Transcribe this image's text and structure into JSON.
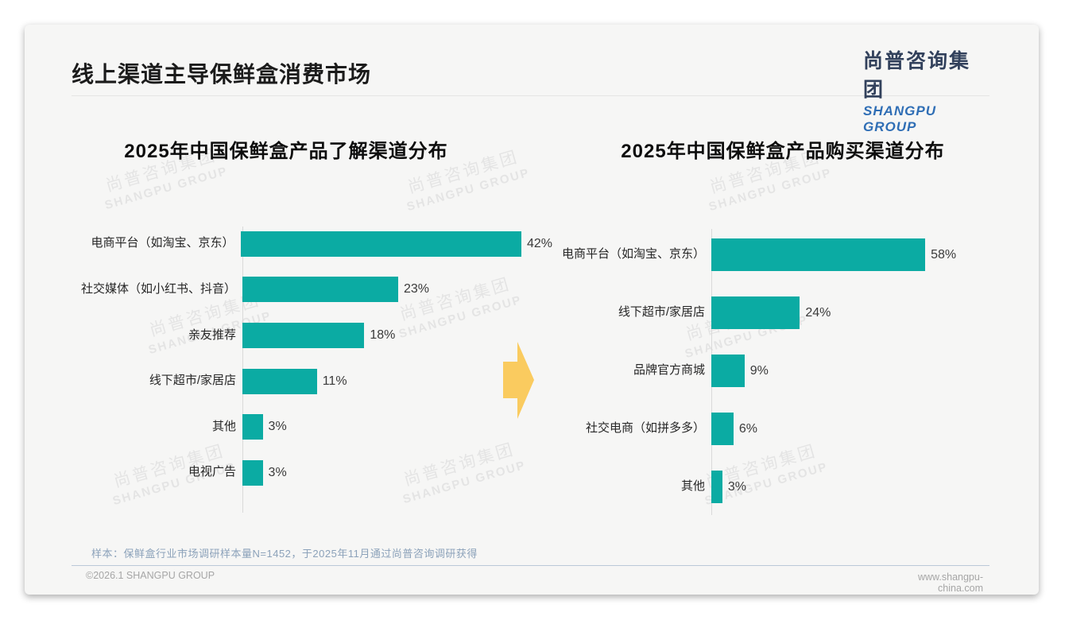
{
  "page": {
    "title": "线上渠道主导保鲜盒消费市场",
    "logo": {
      "zh": "尚普咨询集团",
      "en": "SHANGPU GROUP"
    },
    "watermark": {
      "zh": "尚普咨询集团",
      "en": "SHANGPU GROUP"
    },
    "note": "样本：保鲜盒行业市场调研样本量N=1452，于2025年11月通过尚普咨询调研获得",
    "footer_left": "©2026.1 SHANGPU GROUP",
    "footer_right": "www.shangpu-china.com"
  },
  "colors": {
    "bar": "#0BABA3",
    "arrow": "#FACB5F",
    "logo_zh": "#32415c",
    "logo_en": "#2f6eb5"
  },
  "chart_data": [
    {
      "type": "bar",
      "orientation": "horizontal",
      "title": "2025年中国保鲜盒产品了解渠道分布",
      "categories": [
        "电商平台（如淘宝、京东）",
        "社交媒体（如小红书、抖音）",
        "亲友推荐",
        "线下超市/家居店",
        "其他",
        "电视广告"
      ],
      "values": [
        42,
        23,
        18,
        11,
        3,
        3
      ],
      "labels": [
        "42%",
        "23%",
        "18%",
        "11%",
        "3%",
        "3%"
      ],
      "unit": "%",
      "xlim": [
        0,
        60
      ],
      "grid": false,
      "legend": false
    },
    {
      "type": "bar",
      "orientation": "horizontal",
      "title": "2025年中国保鲜盒产品购买渠道分布",
      "categories": [
        "电商平台（如淘宝、京东）",
        "线下超市/家居店",
        "品牌官方商城",
        "社交电商（如拼多多）",
        "其他"
      ],
      "values": [
        58,
        24,
        9,
        6,
        3
      ],
      "labels": [
        "58%",
        "24%",
        "9%",
        "6%",
        "3%"
      ],
      "unit": "%",
      "xlim": [
        0,
        70
      ],
      "grid": false,
      "legend": false
    }
  ]
}
